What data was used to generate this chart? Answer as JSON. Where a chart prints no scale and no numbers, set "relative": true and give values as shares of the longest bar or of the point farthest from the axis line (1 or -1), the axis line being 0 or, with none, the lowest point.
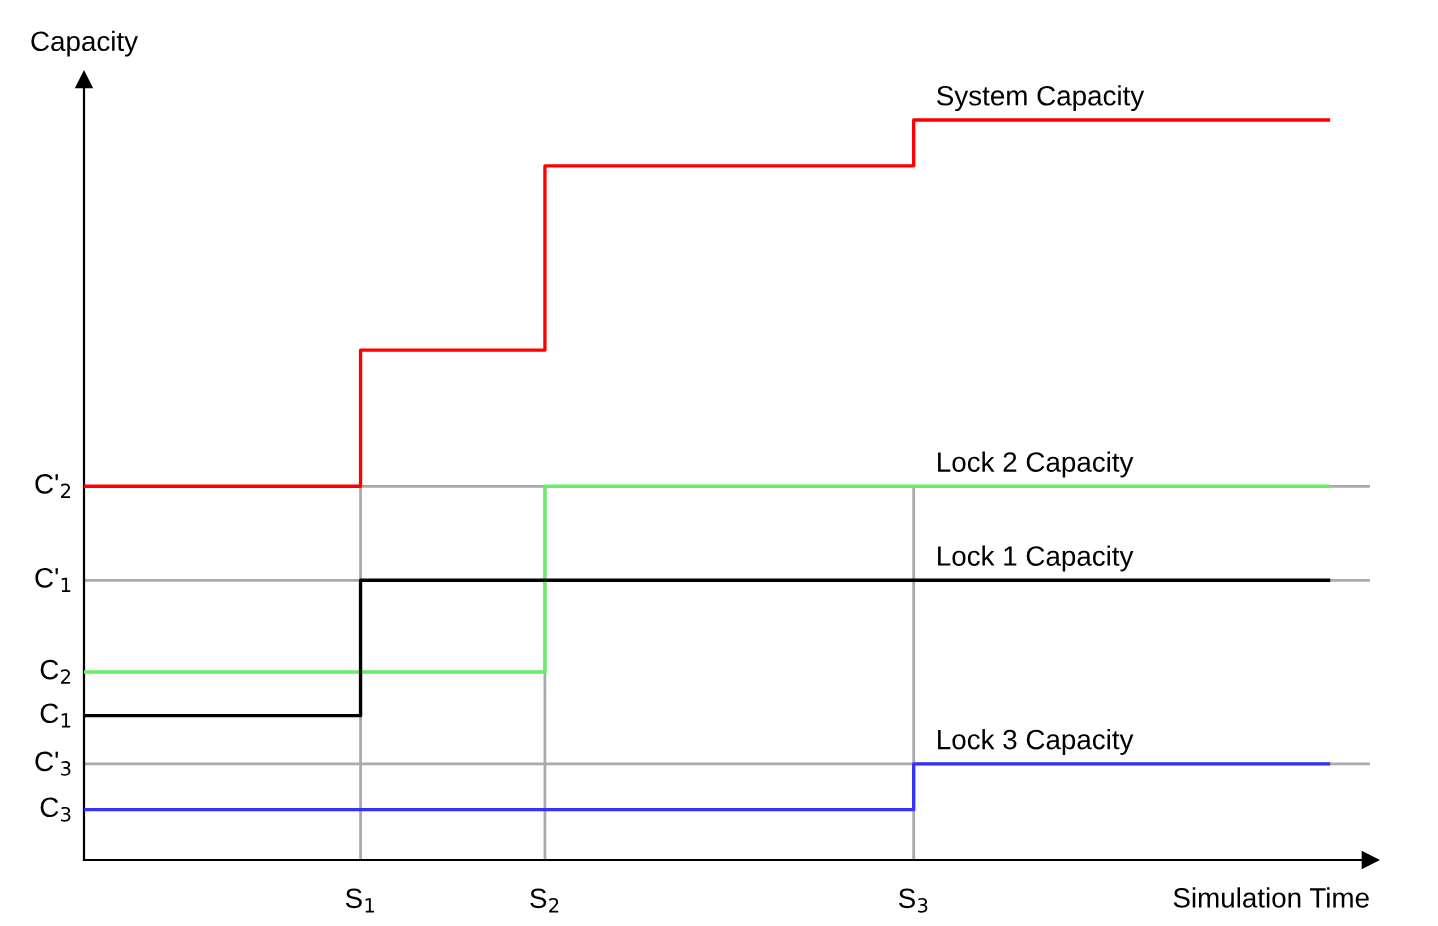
{
  "chart_data": {
    "type": "step",
    "relative": true,
    "xlabel": "Simulation Time",
    "ylabel": "Capacity",
    "categories": [
      null,
      null,
      null,
      null,
      null,
      null,
      "S$_{1}$",
      null,
      null,
      null,
      "S$_{2}$",
      null,
      null,
      null,
      null,
      null,
      null,
      null,
      "S$_{3}$",
      null,
      null,
      null,
      null,
      null,
      null,
      null,
      null,
      null
    ],
    "series": [
      {
        "name": "System Capacity",
        "color": "#ff0000",
        "values": [
          0.505,
          0.505,
          0.505,
          0.505,
          0.505,
          0.505,
          0.689,
          0.689,
          0.689,
          0.689,
          0.938,
          0.938,
          0.938,
          0.938,
          0.938,
          0.938,
          0.938,
          0.938,
          1,
          1,
          1,
          1,
          1,
          1,
          1,
          1,
          1,
          1
        ]
      },
      {
        "name": "Lock 2 Capacity",
        "color": "#66ee66",
        "values": [
          0.254,
          0.254,
          0.254,
          0.254,
          0.254,
          0.254,
          0.254,
          0.254,
          0.254,
          0.254,
          0.505,
          0.505,
          0.505,
          0.505,
          0.505,
          0.505,
          0.505,
          0.505,
          0.505,
          0.505,
          0.505,
          0.505,
          0.505,
          0.505,
          0.505,
          0.505,
          0.505,
          0.505
        ]
      },
      {
        "name": "Lock 1 Capacity",
        "color": "#000000",
        "values": [
          0.195,
          0.195,
          0.195,
          0.195,
          0.195,
          0.195,
          0.378,
          0.378,
          0.378,
          0.378,
          0.378,
          0.378,
          0.378,
          0.378,
          0.378,
          0.378,
          0.378,
          0.378,
          0.378,
          0.378,
          0.378,
          0.378,
          0.378,
          0.378,
          0.378,
          0.378,
          0.378,
          0.378
        ]
      },
      {
        "name": "Lock 3 Capacity",
        "color": "#3333ff",
        "values": [
          0.068,
          0.068,
          0.068,
          0.068,
          0.068,
          0.068,
          0.068,
          0.068,
          0.068,
          0.068,
          0.068,
          0.068,
          0.068,
          0.068,
          0.068,
          0.068,
          0.068,
          0.068,
          0.13,
          0.13,
          0.13,
          0.13,
          0.13,
          0.13,
          0.13,
          0.13,
          0.13,
          0.13
        ]
      }
    ],
    "ref_lines": [
      {
        "axis": "y",
        "value": 0.505,
        "color": "#aaaaaa",
        "label": "C'$_{2}$"
      },
      {
        "axis": "y",
        "value": 0.378,
        "color": "#aaaaaa",
        "label": "C'$_{1}$"
      },
      {
        "axis": "y",
        "value": 0.13,
        "color": "#aaaaaa",
        "label": "C'$_{3}$"
      },
      {
        "axis": "x",
        "value": "S$_{1}$",
        "color": "#aaaaaa"
      },
      {
        "axis": "x",
        "value": "S$_{2}$",
        "color": "#aaaaaa"
      },
      {
        "axis": "x",
        "value": "S$_{3}$",
        "color": "#aaaaaa"
      }
    ],
    "annotations": [
      "C$_{2}$",
      "C$_{1}$",
      "C$_{3}$"
    ]
  }
}
